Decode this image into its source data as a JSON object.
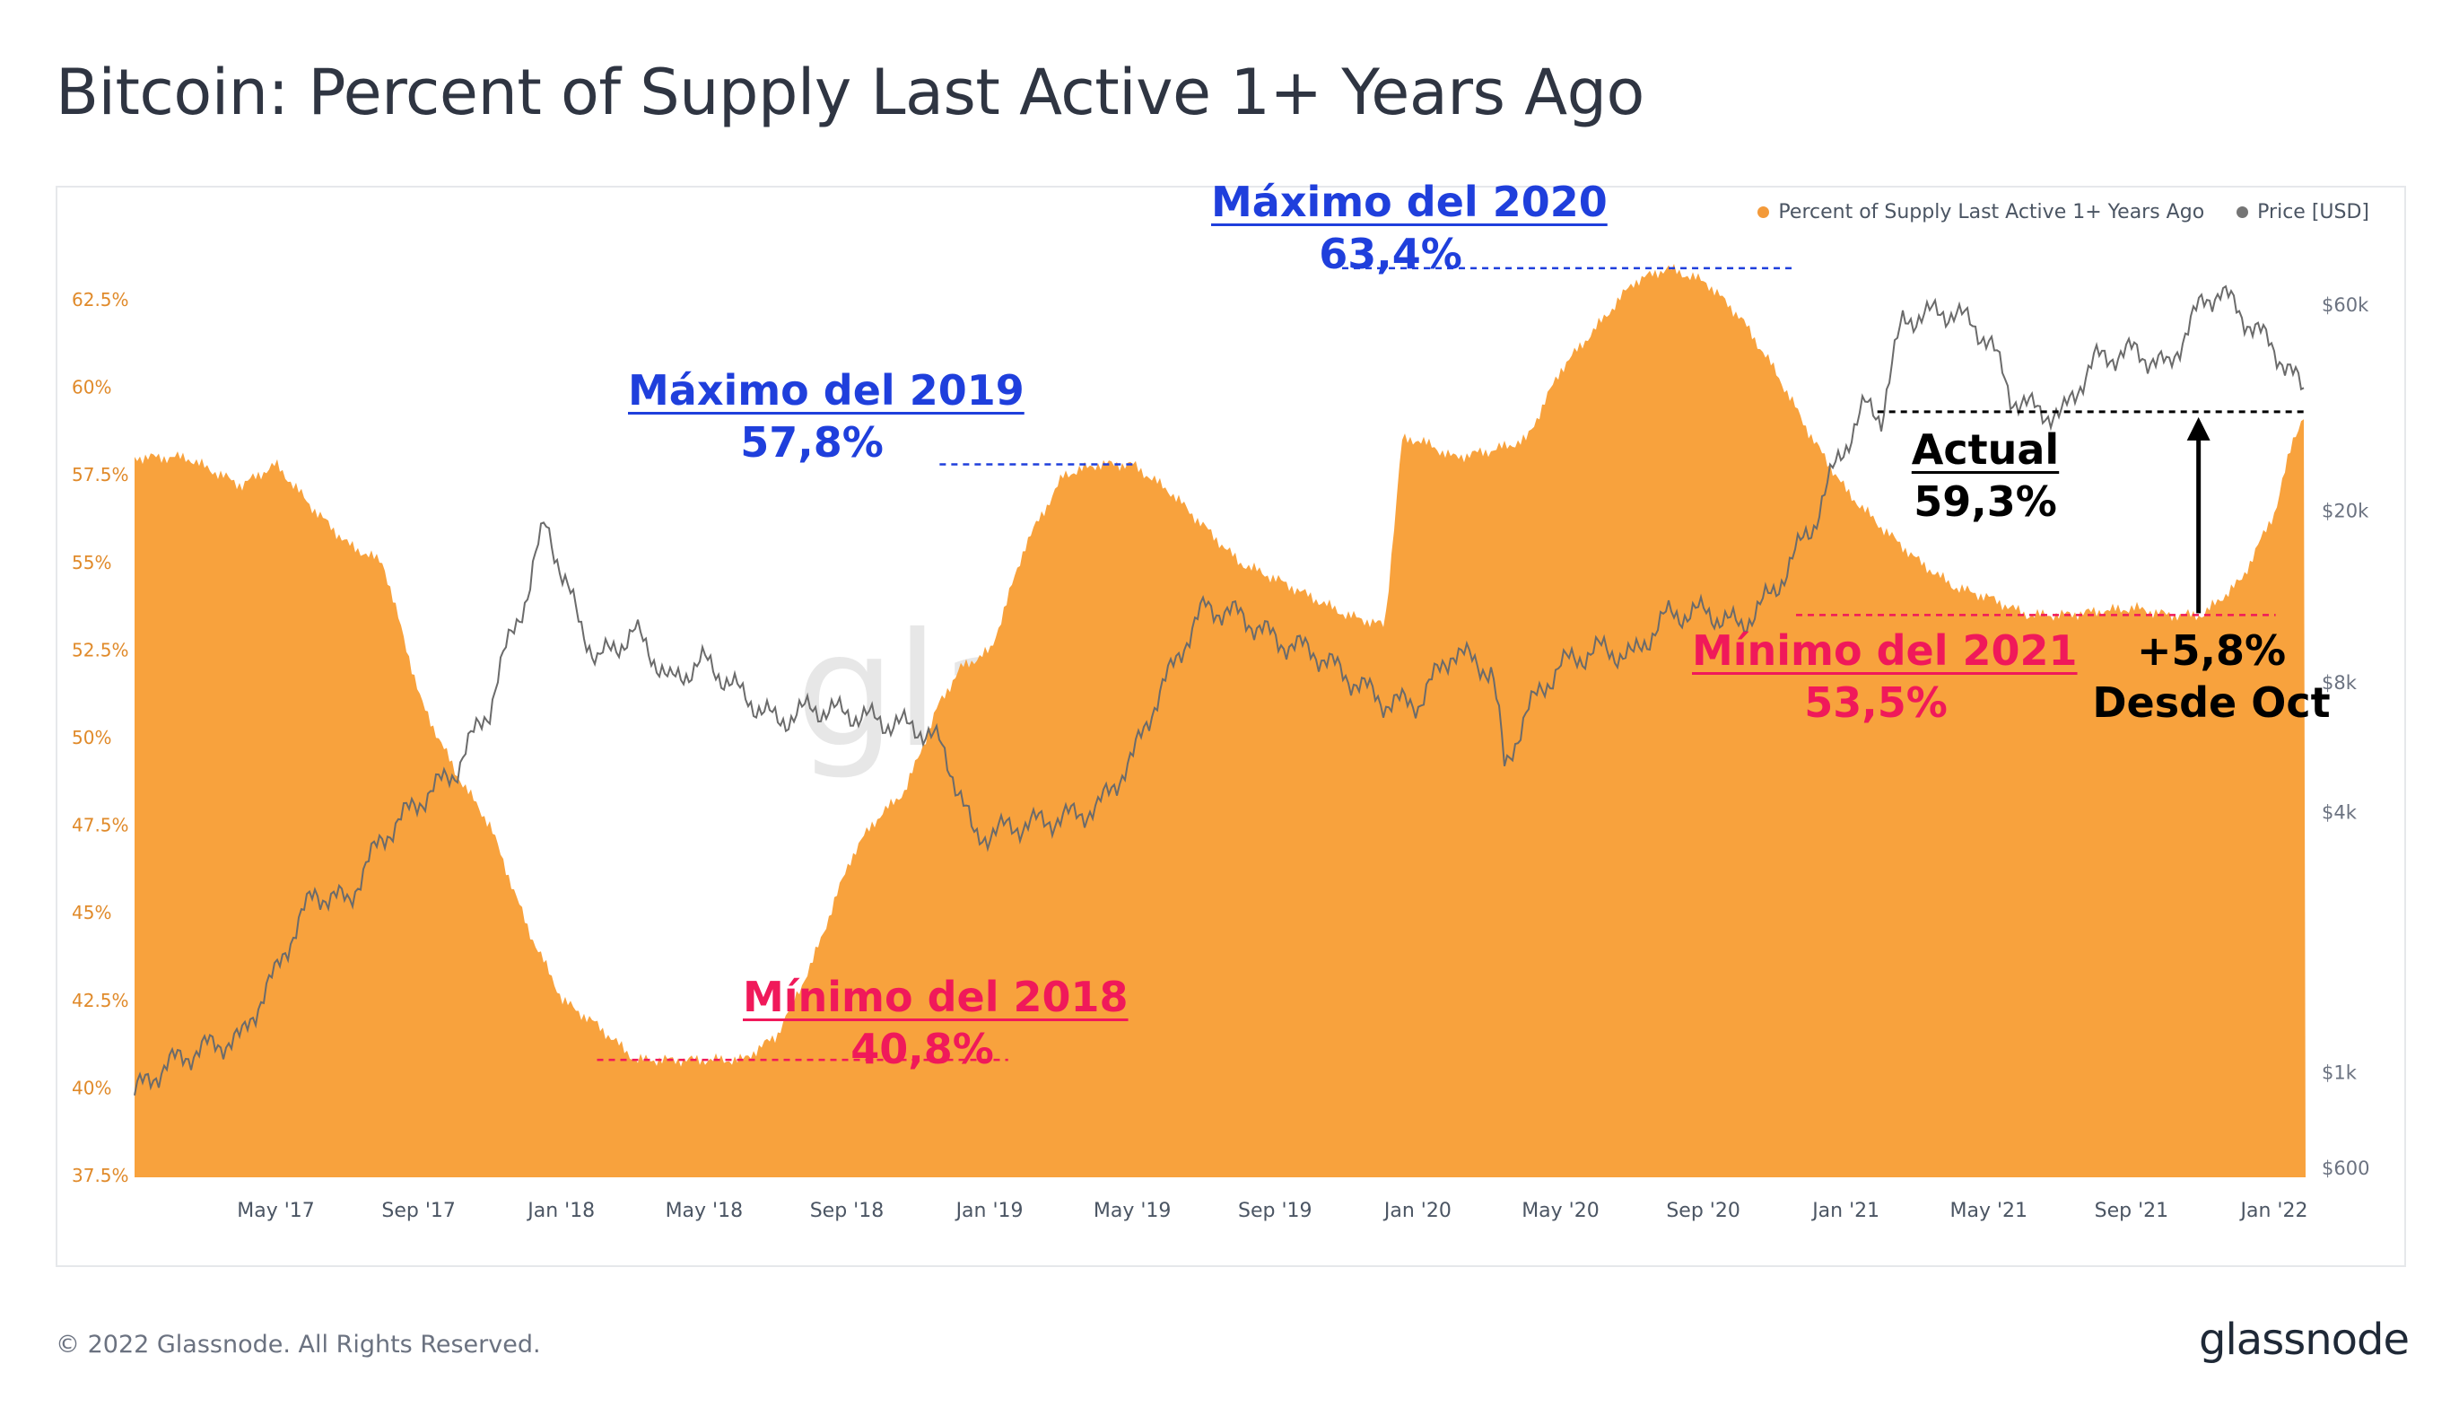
{
  "title": "Bitcoin: Percent of Supply Last Active 1+ Years Ago",
  "footer": "© 2022 Glassnode. All Rights Reserved.",
  "brand": "glassnode",
  "watermark": "glassnode",
  "colors": {
    "supply": "#f8a23d",
    "price": "#6b6b6b",
    "blue": "#1f3fdc",
    "red": "#f0195a",
    "axis_left": "#e08a2a",
    "axis_right": "#6b7280"
  },
  "legend": [
    {
      "label": "Percent of Supply Last Active 1+ Years Ago",
      "color": "#f39a3a"
    },
    {
      "label": "Price [USD]",
      "color": "#757575"
    }
  ],
  "annotations": {
    "max2019": {
      "l1": "Máximo del 2019",
      "l2": "57,8%"
    },
    "max2020": {
      "l1": "Máximo del 2020",
      "l2": "63,4%"
    },
    "min2018": {
      "l1": "Mínimo del 2018",
      "l2": "40,8%"
    },
    "min2021": {
      "l1": "Mínimo del 2021",
      "l2": "53,5%"
    },
    "actual": {
      "l1": "Actual",
      "l2": "59,3%"
    },
    "change": {
      "l1": "+5,8%",
      "l2": "Desde Oct"
    }
  },
  "chart_data": {
    "type": "area",
    "title": "Bitcoin: Percent of Supply Last Active 1+ Years Ago",
    "x_ticks": [
      "May '17",
      "Sep '17",
      "Jan '18",
      "May '18",
      "Sep '18",
      "Jan '19",
      "May '19",
      "Sep '19",
      "Jan '20",
      "May '20",
      "Sep '20",
      "Jan '21",
      "May '21",
      "Sep '21",
      "Jan '22"
    ],
    "y_left": {
      "label": "Percent of Supply Last Active 1+ Years Ago",
      "ylim": [
        37.5,
        64.0
      ],
      "ticks": [
        "37.5%",
        "40%",
        "42.5%",
        "45%",
        "47.5%",
        "50%",
        "52.5%",
        "55%",
        "57.5%",
        "60%",
        "62.5%"
      ]
    },
    "y_right": {
      "label": "Price [USD]",
      "scale": "log",
      "ylim": [
        600,
        70000
      ],
      "ticks": [
        "$600",
        "$1k",
        "$4k",
        "$8k",
        "$20k",
        "$60k"
      ]
    },
    "series": [
      {
        "name": "Percent of Supply Last Active 1+ Years Ago",
        "x": [
          2017.0,
          2017.12,
          2017.25,
          2017.33,
          2017.42,
          2017.5,
          2017.58,
          2017.67,
          2017.75,
          2017.83,
          2017.92,
          2018.0,
          2018.08,
          2018.17,
          2018.25,
          2018.33,
          2018.42,
          2018.5,
          2018.58,
          2018.67,
          2018.72,
          2018.8,
          2018.88,
          2018.93,
          2019.0,
          2019.08,
          2019.17,
          2019.25,
          2019.33,
          2019.42,
          2019.5,
          2019.58,
          2019.67,
          2019.75,
          2019.83,
          2019.92,
          2019.96,
          2020.0,
          2020.08,
          2020.17,
          2020.25,
          2020.33,
          2020.42,
          2020.5,
          2020.58,
          2020.67,
          2020.75,
          2020.83,
          2020.92,
          2021.0,
          2021.08,
          2021.17,
          2021.25,
          2021.33,
          2021.42,
          2021.5,
          2021.58,
          2021.67,
          2021.75,
          2021.83,
          2021.92,
          2022.0,
          2022.04,
          2022.07
        ],
        "values": [
          58.0,
          58.0,
          57.2,
          57.8,
          56.5,
          55.5,
          55.0,
          51.0,
          49.0,
          47.5,
          44.5,
          42.5,
          41.8,
          40.8,
          40.8,
          40.8,
          40.8,
          41.5,
          43.5,
          46.5,
          47.5,
          48.5,
          51.0,
          52.0,
          52.5,
          55.5,
          57.5,
          57.8,
          57.8,
          57.0,
          56.0,
          55.0,
          54.5,
          54.0,
          53.5,
          53.2,
          58.5,
          58.5,
          58.0,
          58.2,
          58.5,
          60.5,
          61.8,
          63.0,
          63.4,
          63.0,
          62.0,
          60.5,
          58.5,
          57.0,
          56.0,
          55.0,
          54.3,
          54.0,
          53.5,
          53.5,
          53.6,
          53.7,
          53.5,
          53.5,
          54.5,
          56.5,
          58.5,
          59.3
        ]
      },
      {
        "name": "Price [USD]",
        "x": [
          2017.0,
          2017.08,
          2017.17,
          2017.25,
          2017.33,
          2017.42,
          2017.5,
          2017.58,
          2017.67,
          2017.75,
          2017.83,
          2017.92,
          2017.96,
          2018.0,
          2018.04,
          2018.08,
          2018.17,
          2018.25,
          2018.33,
          2018.42,
          2018.5,
          2018.58,
          2018.67,
          2018.75,
          2018.83,
          2018.88,
          2018.96,
          2019.04,
          2019.17,
          2019.25,
          2019.33,
          2019.42,
          2019.5,
          2019.58,
          2019.67,
          2019.75,
          2019.83,
          2019.92,
          2020.0,
          2020.08,
          2020.17,
          2020.2,
          2020.25,
          2020.33,
          2020.42,
          2020.5,
          2020.58,
          2020.67,
          2020.75,
          2020.83,
          2020.92,
          2021.0,
          2021.04,
          2021.08,
          2021.13,
          2021.17,
          2021.25,
          2021.33,
          2021.38,
          2021.42,
          2021.5,
          2021.58,
          2021.67,
          2021.75,
          2021.83,
          2021.87,
          2021.92,
          2022.0,
          2022.07
        ],
        "values": [
          900,
          1050,
          1150,
          1200,
          1700,
          2600,
          2500,
          3500,
          4300,
          5000,
          7000,
          13000,
          19000,
          14000,
          11000,
          9000,
          10500,
          8000,
          9000,
          7500,
          6500,
          7000,
          6800,
          6500,
          6300,
          5800,
          3500,
          3700,
          3900,
          4100,
          5300,
          8500,
          12000,
          11500,
          10000,
          9500,
          8300,
          7200,
          7200,
          9500,
          8500,
          5000,
          6800,
          8800,
          9600,
          9200,
          11500,
          11700,
          10800,
          13000,
          18500,
          29000,
          35000,
          33000,
          55000,
          57000,
          58000,
          50000,
          37000,
          35000,
          33000,
          45000,
          47000,
          43000,
          61000,
          65000,
          57000,
          47000,
          37000
        ]
      }
    ],
    "reference_lines": [
      {
        "label": "Máximo del 2019",
        "value": 57.8,
        "style": "dashed",
        "color": "#1f3fdc"
      },
      {
        "label": "Máximo del 2020",
        "value": 63.4,
        "style": "dashed",
        "color": "#1f3fdc"
      },
      {
        "label": "Mínimo del 2018",
        "value": 40.8,
        "style": "dashed",
        "color": "#f0195a"
      },
      {
        "label": "Mínimo del 2021",
        "value": 53.5,
        "style": "dashed",
        "color": "#f0195a"
      },
      {
        "label": "Actual",
        "value": 59.3,
        "style": "dashed",
        "color": "#000000"
      }
    ]
  }
}
